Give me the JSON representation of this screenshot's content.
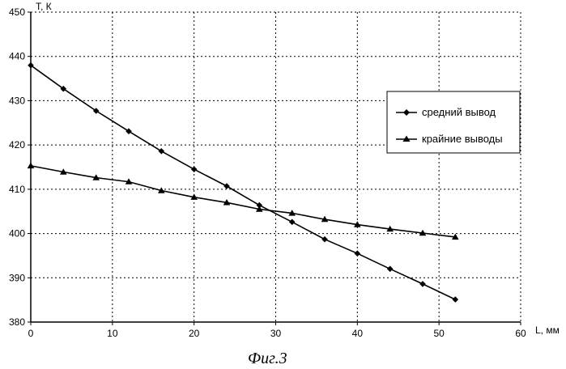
{
  "chart_data": {
    "type": "line",
    "title": "",
    "xlabel": "L, мм",
    "ylabel": "T, К",
    "xlim": [
      0,
      60
    ],
    "ylim": [
      380,
      450
    ],
    "x_ticks": [
      0,
      10,
      20,
      30,
      40,
      50,
      60
    ],
    "y_ticks": [
      380,
      390,
      400,
      410,
      420,
      430,
      440,
      450
    ],
    "grid": true,
    "legend": "right",
    "series": [
      {
        "name": "средний вывод",
        "marker": "diamond",
        "color": "#000000",
        "x": [
          0,
          4,
          8,
          12,
          16,
          20,
          24,
          28,
          32,
          36,
          40,
          44,
          48,
          52
        ],
        "values": [
          438,
          432.7,
          427.7,
          423.1,
          418.6,
          414.5,
          410.7,
          406.4,
          402.6,
          398.7,
          395.5,
          392,
          388.6,
          385.1
        ]
      },
      {
        "name": "крайние выводы",
        "marker": "triangle",
        "color": "#000000",
        "x": [
          0,
          4,
          8,
          12,
          16,
          20,
          24,
          28,
          32,
          36,
          40,
          44,
          48,
          52
        ],
        "values": [
          415.3,
          413.9,
          412.6,
          411.7,
          409.7,
          408.2,
          407,
          405.5,
          404.6,
          403.2,
          402,
          401,
          400.1,
          399.2
        ]
      }
    ]
  },
  "caption": "Фиг.3"
}
